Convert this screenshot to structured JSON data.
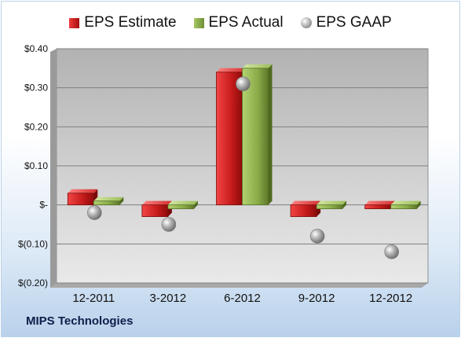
{
  "chart_data": {
    "type": "bar",
    "title": "",
    "categories": [
      "12-2011",
      "3-2012",
      "6-2012",
      "9-2012",
      "12-2012"
    ],
    "series": [
      {
        "name": "EPS Estimate",
        "kind": "bar",
        "color": "#c81c1c",
        "values": [
          0.03,
          -0.03,
          0.34,
          -0.03,
          -0.01
        ]
      },
      {
        "name": "EPS Actual",
        "kind": "bar",
        "color": "#8aab48",
        "values": [
          0.01,
          -0.01,
          0.35,
          -0.01,
          -0.01
        ]
      },
      {
        "name": "EPS GAAP",
        "kind": "marker",
        "color": "#9a9a9a",
        "values": [
          -0.02,
          -0.05,
          0.31,
          -0.08,
          -0.12
        ]
      }
    ],
    "ylim": [
      -0.2,
      0.4
    ],
    "yticks": [
      0.4,
      0.3,
      0.2,
      0.1,
      0.0,
      -0.1,
      -0.2
    ],
    "ytick_labels": [
      "$0.40",
      "$0.30",
      "$0.20",
      "$0.10",
      "$-",
      "$(0.10)",
      "$(0.20)"
    ],
    "grid": true,
    "legend": "top"
  },
  "company": "MIPS Technologies"
}
